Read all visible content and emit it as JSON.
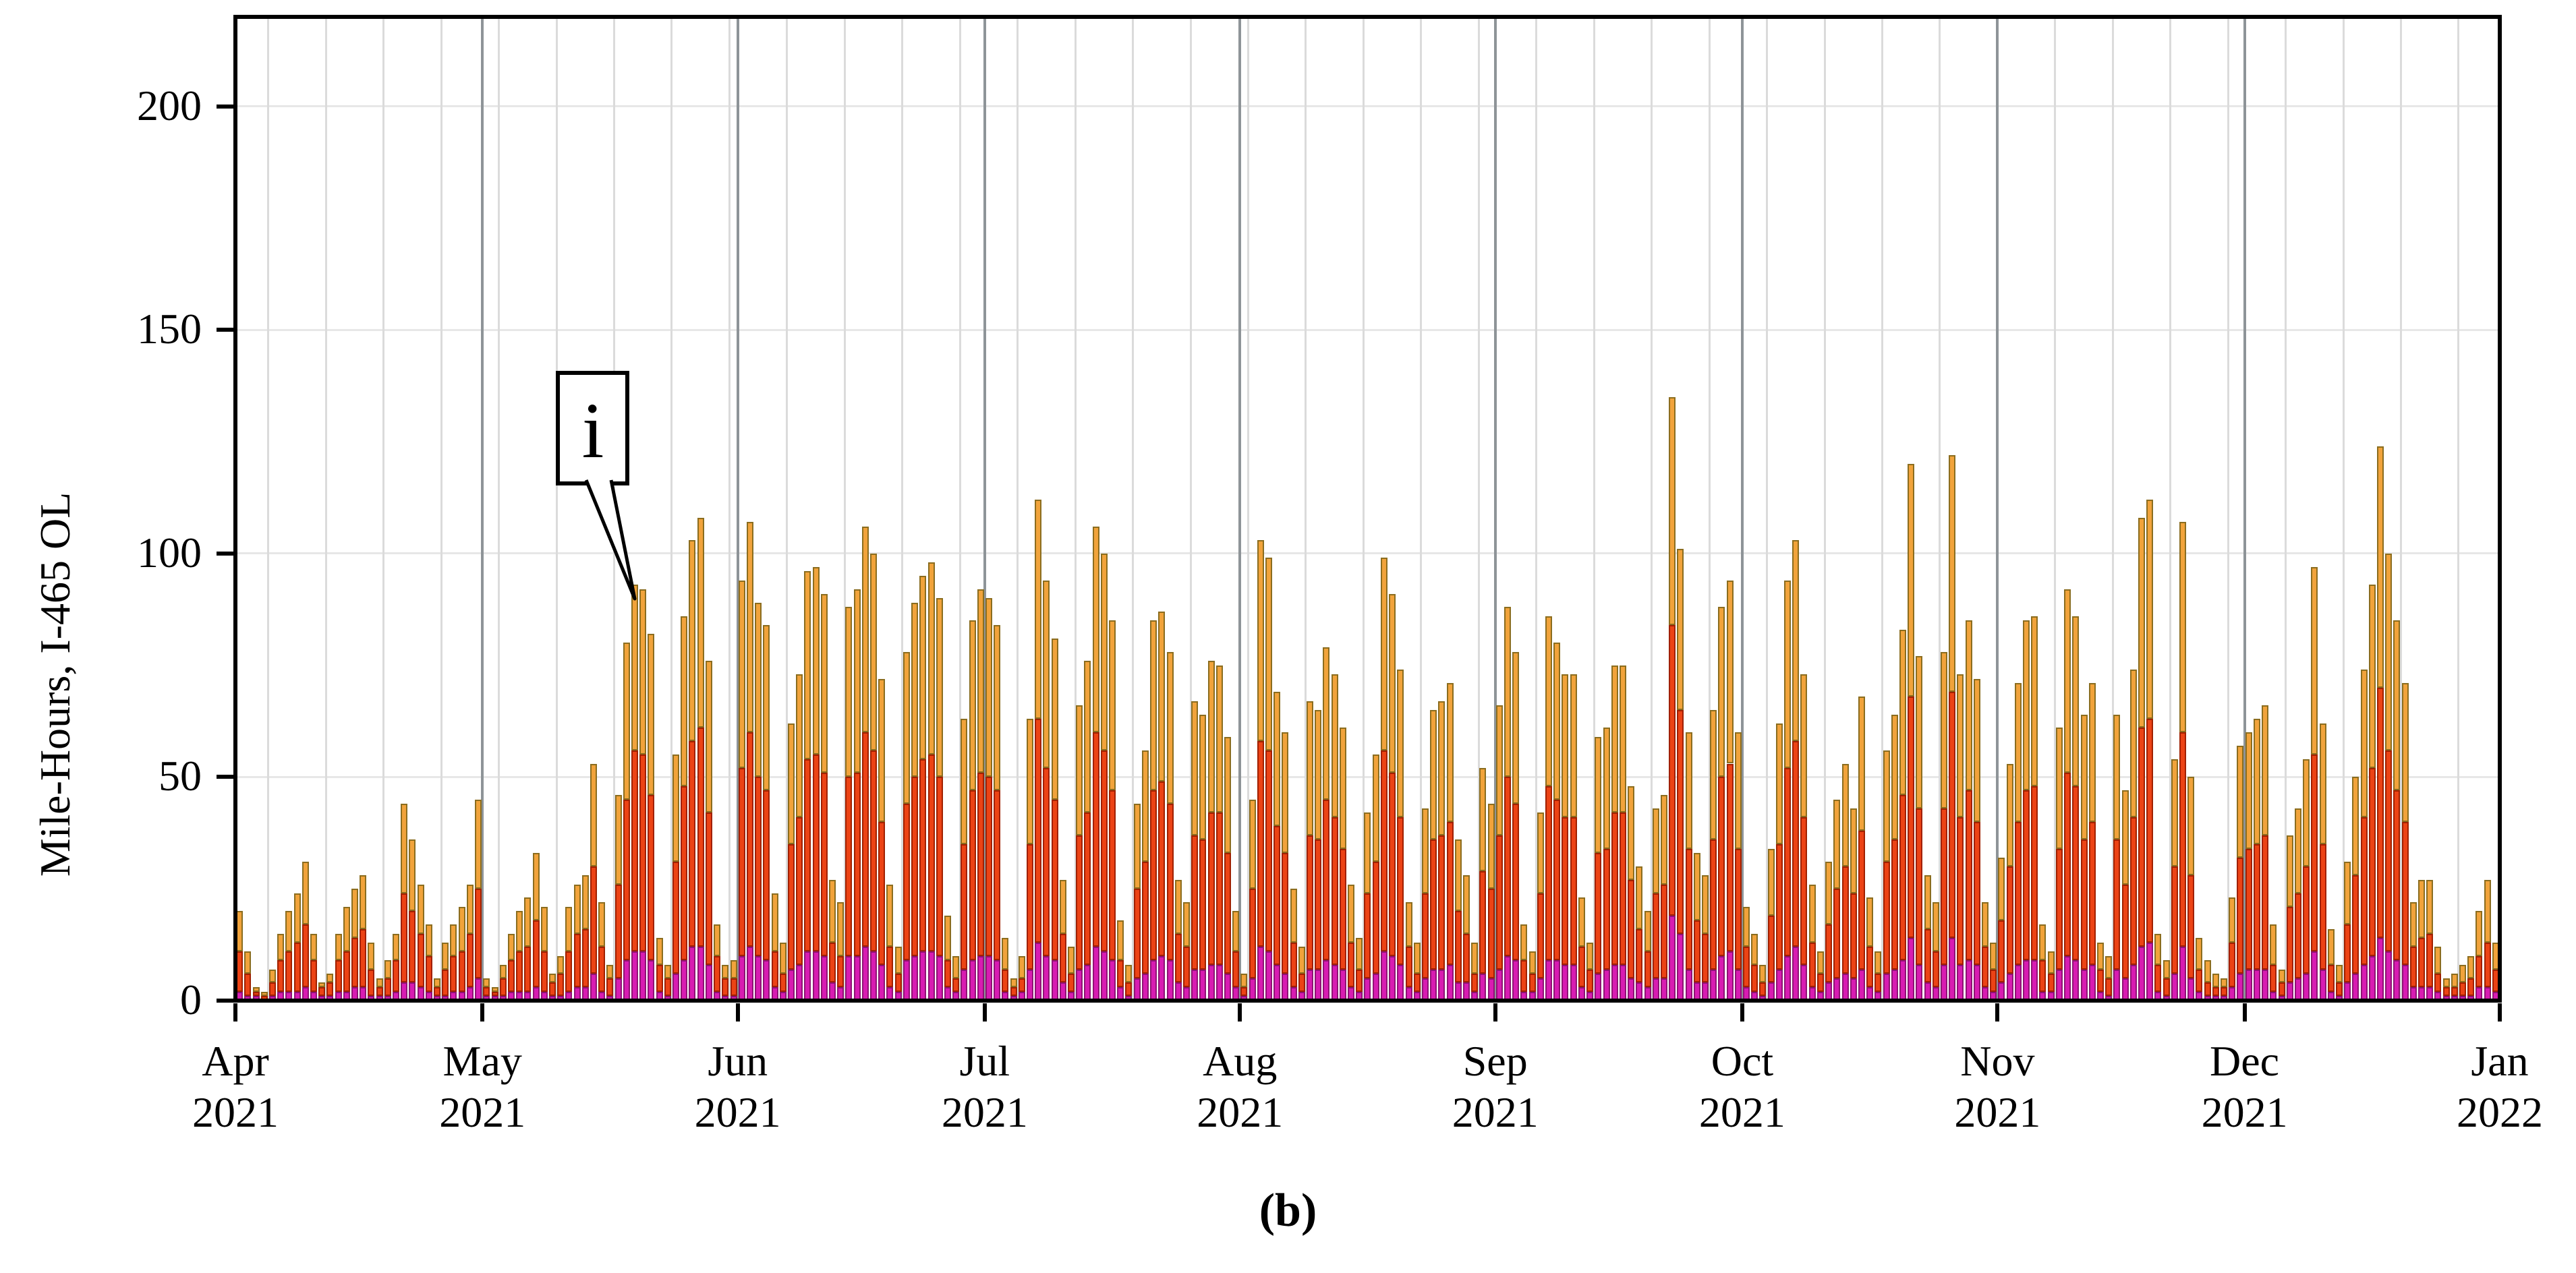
{
  "figure": {
    "caption": "(b)"
  },
  "chart_data": {
    "type": "bar",
    "subtype": "stacked-daily-bars",
    "title": "",
    "xlabel": "",
    "ylabel": "Mile-Hours, I-465 OL",
    "ylim": [
      0,
      220
    ],
    "yticks": [
      0,
      50,
      100,
      150,
      200
    ],
    "grid": {
      "horizontal": "on",
      "weekly_vertical": "on",
      "month_vertical": "on"
    },
    "legend": "none",
    "x_tick_labels": [
      {
        "month": "Apr",
        "year": "2021"
      },
      {
        "month": "May",
        "year": "2021"
      },
      {
        "month": "Jun",
        "year": "2021"
      },
      {
        "month": "Jul",
        "year": "2021"
      },
      {
        "month": "Aug",
        "year": "2021"
      },
      {
        "month": "Sep",
        "year": "2021"
      },
      {
        "month": "Oct",
        "year": "2021"
      },
      {
        "month": "Nov",
        "year": "2021"
      },
      {
        "month": "Dec",
        "year": "2021"
      },
      {
        "month": "Jan",
        "year": "2022"
      }
    ],
    "month_start_day_index": [
      0,
      30,
      61,
      91,
      122,
      153,
      183,
      214,
      244,
      275
    ],
    "first_week_gridline_day": 4,
    "annotation": {
      "label": "i",
      "points_to": "bar of ~91 mile-hours in mid-May 2021"
    },
    "colors": {
      "orange_fill": "#F1A33B",
      "orange_border": "#8B6D1F",
      "red_fill": "#EC4315",
      "red_border": "#A02000",
      "magenta_fill": "#D81CB2",
      "magenta_border": "#8F1274",
      "month_line": "#8E9498",
      "week_line": "#DBDBDB",
      "h_grid": "#E7E7E7",
      "axis": "#000000"
    },
    "series_order_bottom_to_top": [
      "magenta",
      "red",
      "orange"
    ],
    "days": [
      [
        2,
        9,
        9
      ],
      [
        1,
        5,
        5
      ],
      [
        1,
        1,
        1
      ],
      [
        0,
        1,
        1
      ],
      [
        1,
        3,
        3
      ],
      [
        2,
        7,
        6
      ],
      [
        2,
        9,
        9
      ],
      [
        2,
        11,
        11
      ],
      [
        3,
        14,
        14
      ],
      [
        2,
        7,
        6
      ],
      [
        1,
        2,
        1
      ],
      [
        1,
        3,
        2
      ],
      [
        2,
        7,
        6
      ],
      [
        2,
        9,
        10
      ],
      [
        3,
        11,
        11
      ],
      [
        3,
        13,
        12
      ],
      [
        1,
        6,
        6
      ],
      [
        1,
        2,
        2
      ],
      [
        1,
        4,
        4
      ],
      [
        2,
        7,
        6
      ],
      [
        4,
        20,
        20
      ],
      [
        4,
        16,
        16
      ],
      [
        3,
        12,
        11
      ],
      [
        2,
        8,
        7
      ],
      [
        1,
        2,
        2
      ],
      [
        1,
        6,
        6
      ],
      [
        2,
        8,
        7
      ],
      [
        2,
        9,
        10
      ],
      [
        3,
        12,
        11
      ],
      [
        5,
        20,
        20
      ],
      [
        1,
        2,
        2
      ],
      [
        1,
        1,
        1
      ],
      [
        1,
        4,
        3
      ],
      [
        2,
        7,
        6
      ],
      [
        2,
        9,
        9
      ],
      [
        2,
        10,
        11
      ],
      [
        3,
        15,
        15
      ],
      [
        2,
        9,
        10
      ],
      [
        1,
        3,
        2
      ],
      [
        1,
        5,
        4
      ],
      [
        2,
        9,
        10
      ],
      [
        3,
        12,
        11
      ],
      [
        3,
        13,
        12
      ],
      [
        6,
        24,
        23
      ],
      [
        2,
        10,
        10
      ],
      [
        1,
        4,
        3
      ],
      [
        5,
        21,
        20
      ],
      [
        9,
        36,
        35
      ],
      [
        11,
        45,
        37
      ],
      [
        11,
        44,
        37
      ],
      [
        9,
        37,
        36
      ],
      [
        2,
        6,
        6
      ],
      [
        1,
        4,
        3
      ],
      [
        6,
        25,
        24
      ],
      [
        9,
        39,
        38
      ],
      [
        12,
        46,
        45
      ],
      [
        12,
        49,
        47
      ],
      [
        8,
        34,
        34
      ],
      [
        2,
        8,
        7
      ],
      [
        1,
        4,
        3
      ],
      [
        1,
        4,
        4
      ],
      [
        10,
        42,
        42
      ],
      [
        12,
        48,
        47
      ],
      [
        10,
        40,
        39
      ],
      [
        9,
        38,
        37
      ],
      [
        3,
        8,
        13
      ],
      [
        2,
        4,
        7
      ],
      [
        7,
        28,
        27
      ],
      [
        8,
        33,
        32
      ],
      [
        11,
        43,
        42
      ],
      [
        11,
        44,
        42
      ],
      [
        10,
        41,
        40
      ],
      [
        4,
        9,
        14
      ],
      [
        3,
        7,
        12
      ],
      [
        10,
        40,
        38
      ],
      [
        10,
        41,
        41
      ],
      [
        12,
        48,
        46
      ],
      [
        11,
        45,
        44
      ],
      [
        8,
        32,
        32
      ],
      [
        3,
        9,
        14
      ],
      [
        2,
        4,
        6
      ],
      [
        9,
        35,
        34
      ],
      [
        10,
        40,
        39
      ],
      [
        11,
        43,
        41
      ],
      [
        11,
        44,
        43
      ],
      [
        10,
        40,
        40
      ],
      [
        3,
        6,
        10
      ],
      [
        2,
        3,
        5
      ],
      [
        7,
        28,
        28
      ],
      [
        9,
        38,
        38
      ],
      [
        10,
        41,
        41
      ],
      [
        10,
        40,
        40
      ],
      [
        9,
        38,
        37
      ],
      [
        2,
        5,
        7
      ],
      [
        1,
        2,
        2
      ],
      [
        2,
        3,
        5
      ],
      [
        7,
        28,
        28
      ],
      [
        13,
        50,
        49
      ],
      [
        10,
        42,
        42
      ],
      [
        9,
        36,
        36
      ],
      [
        4,
        11,
        12
      ],
      [
        2,
        4,
        6
      ],
      [
        7,
        30,
        29
      ],
      [
        8,
        34,
        34
      ],
      [
        12,
        48,
        46
      ],
      [
        11,
        45,
        44
      ],
      [
        9,
        38,
        38
      ],
      [
        3,
        6,
        9
      ],
      [
        1,
        3,
        4
      ],
      [
        5,
        20,
        19
      ],
      [
        6,
        25,
        25
      ],
      [
        9,
        38,
        38
      ],
      [
        10,
        39,
        38
      ],
      [
        9,
        35,
        34
      ],
      [
        4,
        11,
        12
      ],
      [
        3,
        9,
        10
      ],
      [
        7,
        30,
        30
      ],
      [
        7,
        29,
        28
      ],
      [
        8,
        34,
        34
      ],
      [
        8,
        34,
        33
      ],
      [
        6,
        27,
        26
      ],
      [
        3,
        8,
        9
      ],
      [
        1,
        2,
        3
      ],
      [
        5,
        20,
        20
      ],
      [
        12,
        46,
        45
      ],
      [
        11,
        45,
        43
      ],
      [
        8,
        31,
        30
      ],
      [
        6,
        27,
        27
      ],
      [
        3,
        10,
        12
      ],
      [
        2,
        4,
        6
      ],
      [
        7,
        30,
        30
      ],
      [
        7,
        29,
        29
      ],
      [
        9,
        36,
        34
      ],
      [
        8,
        33,
        32
      ],
      [
        7,
        27,
        27
      ],
      [
        3,
        10,
        13
      ],
      [
        2,
        5,
        7
      ],
      [
        5,
        19,
        18
      ],
      [
        6,
        25,
        24
      ],
      [
        11,
        45,
        43
      ],
      [
        10,
        41,
        40
      ],
      [
        8,
        33,
        33
      ],
      [
        3,
        9,
        10
      ],
      [
        2,
        4,
        7
      ],
      [
        5,
        19,
        19
      ],
      [
        7,
        29,
        29
      ],
      [
        7,
        30,
        30
      ],
      [
        8,
        32,
        31
      ],
      [
        4,
        16,
        16
      ],
      [
        4,
        11,
        13
      ],
      [
        2,
        4,
        7
      ],
      [
        6,
        23,
        23
      ],
      [
        5,
        20,
        19
      ],
      [
        7,
        30,
        29
      ],
      [
        10,
        40,
        38
      ],
      [
        9,
        35,
        34
      ],
      [
        2,
        7,
        8
      ],
      [
        2,
        4,
        5
      ],
      [
        5,
        19,
        18
      ],
      [
        9,
        39,
        38
      ],
      [
        9,
        36,
        35
      ],
      [
        8,
        33,
        32
      ],
      [
        8,
        33,
        32
      ],
      [
        3,
        9,
        11
      ],
      [
        2,
        5,
        6
      ],
      [
        6,
        27,
        26
      ],
      [
        7,
        27,
        27
      ],
      [
        8,
        34,
        33
      ],
      [
        8,
        34,
        33
      ],
      [
        5,
        22,
        21
      ],
      [
        4,
        12,
        14
      ],
      [
        3,
        8,
        9
      ],
      [
        5,
        19,
        19
      ],
      [
        5,
        21,
        20
      ],
      [
        19,
        65,
        51
      ],
      [
        15,
        50,
        36
      ],
      [
        7,
        27,
        26
      ],
      [
        4,
        14,
        15
      ],
      [
        4,
        11,
        13
      ],
      [
        7,
        29,
        29
      ],
      [
        10,
        40,
        38
      ],
      [
        11,
        42,
        41
      ],
      [
        7,
        27,
        26
      ],
      [
        3,
        9,
        9
      ],
      [
        2,
        6,
        7
      ],
      [
        1,
        3,
        4
      ],
      [
        4,
        15,
        15
      ],
      [
        7,
        28,
        27
      ],
      [
        10,
        42,
        42
      ],
      [
        12,
        46,
        45
      ],
      [
        8,
        33,
        32
      ],
      [
        3,
        10,
        13
      ],
      [
        2,
        4,
        5
      ],
      [
        4,
        13,
        14
      ],
      [
        5,
        20,
        20
      ],
      [
        6,
        24,
        23
      ],
      [
        5,
        19,
        19
      ],
      [
        7,
        31,
        30
      ],
      [
        3,
        9,
        11
      ],
      [
        2,
        4,
        5
      ],
      [
        6,
        25,
        25
      ],
      [
        7,
        29,
        28
      ],
      [
        9,
        37,
        37
      ],
      [
        14,
        54,
        52
      ],
      [
        8,
        35,
        34
      ],
      [
        4,
        12,
        12
      ],
      [
        3,
        8,
        11
      ],
      [
        8,
        35,
        35
      ],
      [
        14,
        55,
        53
      ],
      [
        8,
        33,
        32
      ],
      [
        9,
        38,
        38
      ],
      [
        8,
        32,
        32
      ],
      [
        3,
        9,
        10
      ],
      [
        2,
        5,
        6
      ],
      [
        4,
        14,
        14
      ],
      [
        6,
        24,
        23
      ],
      [
        8,
        32,
        31
      ],
      [
        9,
        38,
        38
      ],
      [
        9,
        39,
        38
      ],
      [
        2,
        7,
        8
      ],
      [
        2,
        4,
        5
      ],
      [
        7,
        27,
        27
      ],
      [
        10,
        41,
        41
      ],
      [
        9,
        39,
        38
      ],
      [
        7,
        29,
        28
      ],
      [
        8,
        32,
        31
      ],
      [
        2,
        5,
        6
      ],
      [
        1,
        4,
        5
      ],
      [
        7,
        29,
        28
      ],
      [
        5,
        21,
        21
      ],
      [
        8,
        33,
        33
      ],
      [
        12,
        49,
        47
      ],
      [
        13,
        50,
        49
      ],
      [
        2,
        6,
        7
      ],
      [
        1,
        4,
        4
      ],
      [
        6,
        24,
        24
      ],
      [
        12,
        48,
        47
      ],
      [
        5,
        23,
        22
      ],
      [
        2,
        5,
        7
      ],
      [
        1,
        3,
        5
      ],
      [
        1,
        2,
        3
      ],
      [
        1,
        2,
        2
      ],
      [
        3,
        10,
        10
      ],
      [
        6,
        26,
        25
      ],
      [
        7,
        27,
        26
      ],
      [
        7,
        28,
        28
      ],
      [
        7,
        30,
        29
      ],
      [
        2,
        6,
        9
      ],
      [
        1,
        3,
        3
      ],
      [
        4,
        17,
        16
      ],
      [
        5,
        19,
        19
      ],
      [
        6,
        24,
        24
      ],
      [
        11,
        44,
        42
      ],
      [
        7,
        28,
        27
      ],
      [
        2,
        6,
        8
      ],
      [
        1,
        3,
        4
      ],
      [
        4,
        13,
        14
      ],
      [
        6,
        22,
        22
      ],
      [
        8,
        33,
        33
      ],
      [
        10,
        42,
        41
      ],
      [
        14,
        56,
        54
      ],
      [
        11,
        45,
        44
      ],
      [
        9,
        38,
        38
      ],
      [
        8,
        32,
        31
      ],
      [
        3,
        9,
        10
      ],
      [
        3,
        11,
        13
      ],
      [
        3,
        12,
        12
      ],
      [
        2,
        4,
        6
      ],
      [
        1,
        2,
        2
      ],
      [
        1,
        2,
        3
      ],
      [
        1,
        3,
        4
      ],
      [
        1,
        4,
        5
      ],
      [
        3,
        7,
        10
      ],
      [
        3,
        10,
        14
      ],
      [
        2,
        5,
        6
      ]
    ]
  }
}
